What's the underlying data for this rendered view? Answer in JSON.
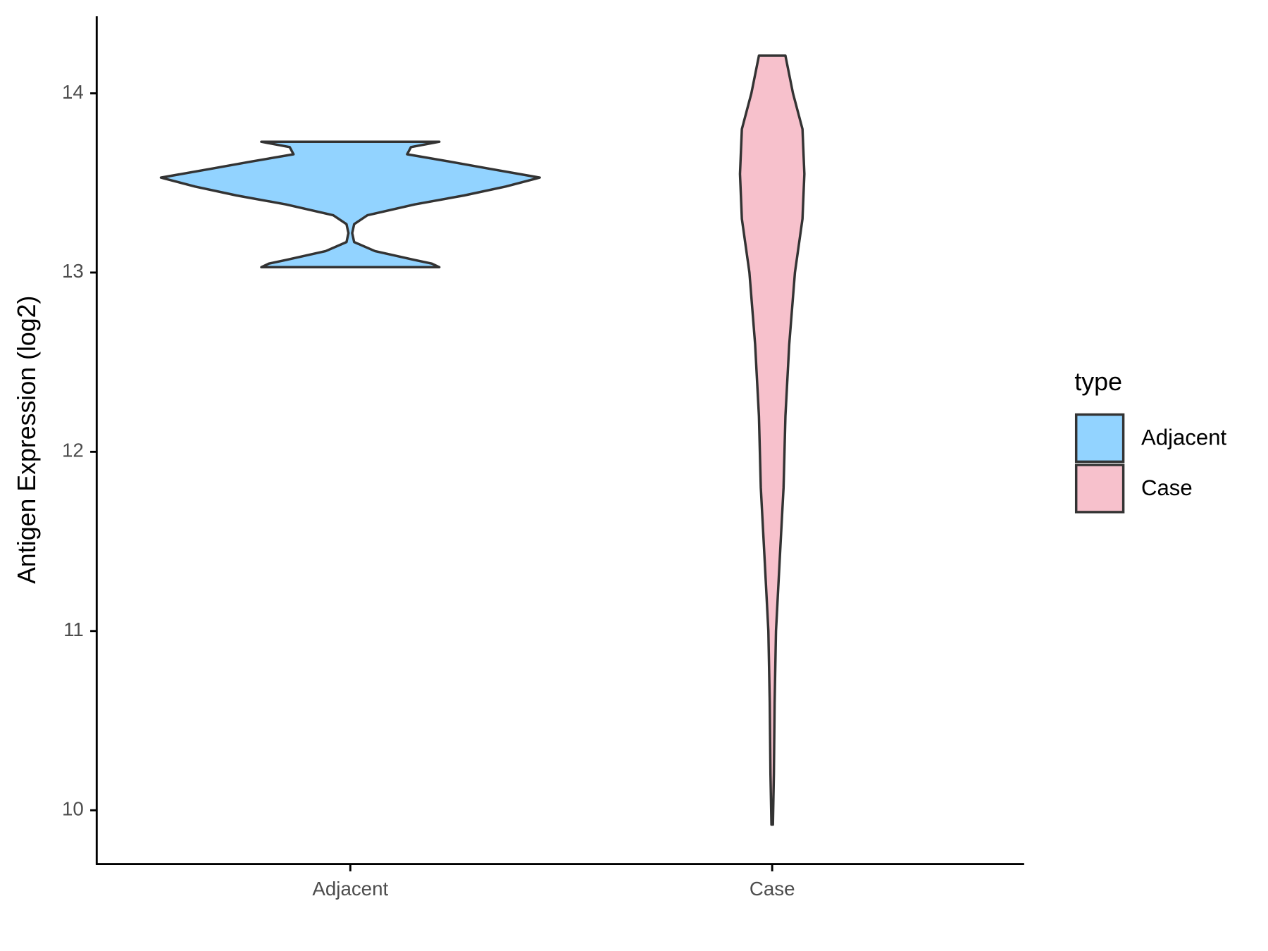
{
  "chart_data": {
    "type": "violin",
    "y_label": "Antigen Expression (log2)",
    "categories": [
      "Adjacent",
      "Case"
    ],
    "legend_title": "type",
    "legend_position": "right",
    "ylim": [
      9.7,
      14.43
    ],
    "yticks": [
      10,
      11,
      12,
      13,
      14
    ],
    "series": [
      {
        "name": "Adjacent",
        "color": "#92d3ff",
        "y": [
          13.73,
          13.7,
          13.66,
          13.62,
          13.58,
          13.53,
          13.48,
          13.43,
          13.38,
          13.32,
          13.27,
          13.22,
          13.17,
          13.12,
          13.07,
          13.05,
          13.03
        ],
        "width": [
          0.47,
          0.32,
          0.3,
          0.52,
          0.73,
          1,
          0.82,
          0.6,
          0.34,
          0.09,
          0.02,
          0.01,
          0.02,
          0.13,
          0.34,
          0.43,
          0.47
        ]
      },
      {
        "name": "Case",
        "color": "#f7c1cc",
        "y": [
          14.21,
          14.0,
          13.8,
          13.55,
          13.3,
          13.0,
          12.6,
          12.2,
          11.8,
          11.4,
          11.0,
          10.6,
          10.2,
          9.92
        ],
        "width": [
          0.07,
          0.11,
          0.16,
          0.17,
          0.16,
          0.12,
          0.09,
          0.07,
          0.06,
          0.04,
          0.02,
          0.013,
          0.009,
          0.004
        ]
      }
    ]
  }
}
